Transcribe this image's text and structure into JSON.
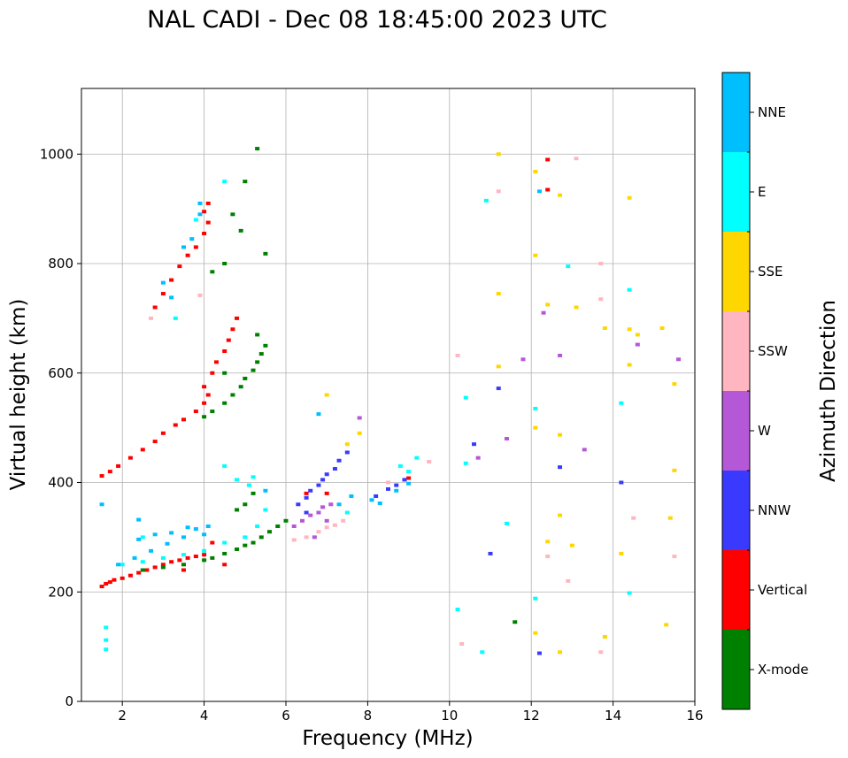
{
  "chart_data": {
    "type": "scatter",
    "title": "NAL CADI - Dec 08 18:45:00 2023 UTC",
    "xlabel": "Frequency (MHz)",
    "ylabel": "Virtual height (km)",
    "xlim": [
      1,
      16
    ],
    "ylim": [
      0,
      1120
    ],
    "xticks": [
      2,
      4,
      6,
      8,
      10,
      12,
      14,
      16
    ],
    "yticks": [
      0,
      200,
      400,
      600,
      800,
      1000
    ],
    "grid": true,
    "colorbar": {
      "label": "Azimuth Direction",
      "categories": [
        {
          "name": "X-mode",
          "color": "#008000"
        },
        {
          "name": "Vertical",
          "color": "#ff0000"
        },
        {
          "name": "NNW",
          "color": "#3a3aff"
        },
        {
          "name": "W",
          "color": "#b558d8"
        },
        {
          "name": "SSW",
          "color": "#ffb6c1"
        },
        {
          "name": "SSE",
          "color": "#ffd700"
        },
        {
          "name": "E",
          "color": "#00ffff"
        },
        {
          "name": "NNE",
          "color": "#00bfff"
        }
      ]
    },
    "series": [
      {
        "name": "Vertical",
        "points": [
          [
            1.5,
            210
          ],
          [
            1.6,
            215
          ],
          [
            1.7,
            218
          ],
          [
            1.8,
            222
          ],
          [
            2.0,
            225
          ],
          [
            2.2,
            230
          ],
          [
            2.4,
            235
          ],
          [
            2.6,
            240
          ],
          [
            2.8,
            245
          ],
          [
            3.0,
            250
          ],
          [
            3.2,
            255
          ],
          [
            3.4,
            258
          ],
          [
            3.6,
            262
          ],
          [
            3.8,
            265
          ],
          [
            4.0,
            268
          ],
          [
            1.5,
            412
          ],
          [
            1.7,
            420
          ],
          [
            1.9,
            430
          ],
          [
            2.2,
            445
          ],
          [
            2.5,
            460
          ],
          [
            2.8,
            475
          ],
          [
            3.0,
            490
          ],
          [
            3.3,
            505
          ],
          [
            3.5,
            515
          ],
          [
            3.8,
            530
          ],
          [
            4.0,
            545
          ],
          [
            4.1,
            560
          ],
          [
            4.0,
            575
          ],
          [
            4.2,
            600
          ],
          [
            4.3,
            620
          ],
          [
            4.5,
            640
          ],
          [
            4.6,
            660
          ],
          [
            4.7,
            680
          ],
          [
            4.8,
            700
          ],
          [
            2.8,
            720
          ],
          [
            3.0,
            745
          ],
          [
            3.2,
            770
          ],
          [
            3.4,
            795
          ],
          [
            3.6,
            815
          ],
          [
            3.8,
            830
          ],
          [
            4.0,
            855
          ],
          [
            4.1,
            875
          ],
          [
            4.0,
            895
          ],
          [
            4.1,
            910
          ],
          [
            6.5,
            380
          ],
          [
            7.0,
            380
          ],
          [
            9.0,
            408
          ],
          [
            12.4,
            990
          ],
          [
            12.4,
            935
          ],
          [
            4.5,
            250
          ],
          [
            4.2,
            290
          ],
          [
            3.5,
            240
          ]
        ]
      },
      {
        "name": "X-mode",
        "points": [
          [
            2.5,
            240
          ],
          [
            3.0,
            245
          ],
          [
            3.5,
            250
          ],
          [
            4.0,
            258
          ],
          [
            4.2,
            262
          ],
          [
            4.5,
            270
          ],
          [
            4.8,
            278
          ],
          [
            5.0,
            285
          ],
          [
            5.2,
            290
          ],
          [
            5.4,
            300
          ],
          [
            5.6,
            310
          ],
          [
            5.8,
            320
          ],
          [
            6.0,
            330
          ],
          [
            4.0,
            520
          ],
          [
            4.2,
            530
          ],
          [
            4.5,
            545
          ],
          [
            4.7,
            560
          ],
          [
            4.9,
            575
          ],
          [
            5.0,
            590
          ],
          [
            5.2,
            605
          ],
          [
            5.3,
            620
          ],
          [
            5.4,
            635
          ],
          [
            5.5,
            650
          ],
          [
            5.3,
            670
          ],
          [
            4.5,
            600
          ],
          [
            4.2,
            785
          ],
          [
            4.5,
            800
          ],
          [
            5.5,
            818
          ],
          [
            5.3,
            1010
          ],
          [
            5.0,
            950
          ],
          [
            4.7,
            890
          ],
          [
            4.9,
            860
          ],
          [
            5.2,
            380
          ],
          [
            5.0,
            360
          ],
          [
            4.8,
            350
          ],
          [
            11.6,
            145
          ]
        ]
      },
      {
        "name": "NNW",
        "points": [
          [
            6.3,
            360
          ],
          [
            6.5,
            345
          ],
          [
            6.5,
            372
          ],
          [
            6.6,
            385
          ],
          [
            6.8,
            395
          ],
          [
            6.9,
            405
          ],
          [
            7.0,
            415
          ],
          [
            7.2,
            425
          ],
          [
            7.3,
            440
          ],
          [
            7.5,
            455
          ],
          [
            8.2,
            375
          ],
          [
            8.5,
            388
          ],
          [
            8.7,
            395
          ],
          [
            8.9,
            405
          ],
          [
            11.2,
            572
          ],
          [
            12.7,
            428
          ],
          [
            10.6,
            470
          ],
          [
            11.0,
            270
          ],
          [
            12.2,
            88
          ],
          [
            14.2,
            400
          ]
        ]
      },
      {
        "name": "W",
        "points": [
          [
            6.2,
            320
          ],
          [
            6.4,
            330
          ],
          [
            6.6,
            340
          ],
          [
            6.8,
            345
          ],
          [
            7.0,
            330
          ],
          [
            6.9,
            355
          ],
          [
            7.1,
            360
          ],
          [
            6.7,
            300
          ],
          [
            7.8,
            518
          ],
          [
            12.3,
            710
          ],
          [
            12.7,
            632
          ],
          [
            14.6,
            652
          ],
          [
            15.6,
            625
          ],
          [
            11.8,
            625
          ],
          [
            13.3,
            460
          ],
          [
            10.7,
            445
          ],
          [
            11.4,
            480
          ]
        ]
      },
      {
        "name": "SSW",
        "points": [
          [
            6.2,
            295
          ],
          [
            6.5,
            300
          ],
          [
            6.8,
            310
          ],
          [
            7.0,
            318
          ],
          [
            7.2,
            322
          ],
          [
            7.4,
            330
          ],
          [
            3.9,
            742
          ],
          [
            2.7,
            700
          ],
          [
            10.2,
            632
          ],
          [
            11.2,
            932
          ],
          [
            13.1,
            992
          ],
          [
            13.7,
            800
          ],
          [
            13.7,
            735
          ],
          [
            14.5,
            335
          ],
          [
            15.5,
            265
          ],
          [
            12.4,
            265
          ],
          [
            12.9,
            220
          ],
          [
            13.7,
            90
          ],
          [
            10.3,
            105
          ],
          [
            8.5,
            400
          ],
          [
            9.5,
            438
          ]
        ]
      },
      {
        "name": "SSE",
        "points": [
          [
            7.0,
            560
          ],
          [
            7.5,
            470
          ],
          [
            7.8,
            490
          ],
          [
            11.2,
            1000
          ],
          [
            12.1,
            968
          ],
          [
            12.7,
            925
          ],
          [
            12.1,
            815
          ],
          [
            12.4,
            725
          ],
          [
            13.1,
            720
          ],
          [
            13.8,
            682
          ],
          [
            14.4,
            680
          ],
          [
            14.6,
            670
          ],
          [
            15.2,
            682
          ],
          [
            14.4,
            615
          ],
          [
            15.5,
            580
          ],
          [
            12.1,
            500
          ],
          [
            12.7,
            487
          ],
          [
            15.5,
            422
          ],
          [
            12.7,
            340
          ],
          [
            12.4,
            292
          ],
          [
            13.0,
            285
          ],
          [
            15.4,
            335
          ],
          [
            14.2,
            270
          ],
          [
            13.8,
            118
          ],
          [
            12.1,
            125
          ],
          [
            12.7,
            90
          ],
          [
            15.3,
            140
          ],
          [
            11.2,
            612
          ],
          [
            11.2,
            745
          ],
          [
            14.4,
            920
          ]
        ]
      },
      {
        "name": "E",
        "points": [
          [
            1.6,
            95
          ],
          [
            1.6,
            112
          ],
          [
            1.6,
            135
          ],
          [
            2.0,
            250
          ],
          [
            2.5,
            255
          ],
          [
            3.0,
            262
          ],
          [
            3.5,
            268
          ],
          [
            4.0,
            275
          ],
          [
            4.5,
            290
          ],
          [
            5.0,
            300
          ],
          [
            5.3,
            320
          ],
          [
            5.5,
            350
          ],
          [
            5.2,
            410
          ],
          [
            5.1,
            395
          ],
          [
            4.8,
            405
          ],
          [
            4.5,
            430
          ],
          [
            2.5,
            300
          ],
          [
            3.3,
            700
          ],
          [
            4.5,
            950
          ],
          [
            3.8,
            880
          ],
          [
            10.4,
            435
          ],
          [
            10.4,
            555
          ],
          [
            10.9,
            915
          ],
          [
            12.9,
            795
          ],
          [
            14.4,
            752
          ],
          [
            14.2,
            545
          ],
          [
            14.4,
            198
          ],
          [
            10.2,
            168
          ],
          [
            10.8,
            90
          ],
          [
            12.1,
            188
          ],
          [
            11.4,
            325
          ],
          [
            9.0,
            420
          ],
          [
            8.8,
            430
          ],
          [
            9.2,
            445
          ],
          [
            7.5,
            345
          ],
          [
            12.1,
            535
          ]
        ]
      },
      {
        "name": "NNE",
        "points": [
          [
            1.5,
            360
          ],
          [
            1.9,
            250
          ],
          [
            2.3,
            262
          ],
          [
            2.7,
            275
          ],
          [
            3.1,
            288
          ],
          [
            3.5,
            300
          ],
          [
            3.8,
            315
          ],
          [
            4.1,
            320
          ],
          [
            2.4,
            296
          ],
          [
            2.8,
            305
          ],
          [
            3.2,
            308
          ],
          [
            3.6,
            318
          ],
          [
            2.4,
            332
          ],
          [
            4.0,
            305
          ],
          [
            3.2,
            738
          ],
          [
            3.0,
            765
          ],
          [
            3.5,
            830
          ],
          [
            3.7,
            845
          ],
          [
            3.9,
            890
          ],
          [
            3.9,
            910
          ],
          [
            5.5,
            385
          ],
          [
            7.3,
            360
          ],
          [
            7.6,
            375
          ],
          [
            8.1,
            368
          ],
          [
            8.3,
            362
          ],
          [
            8.7,
            385
          ],
          [
            9.0,
            398
          ],
          [
            6.8,
            525
          ],
          [
            12.2,
            932
          ]
        ]
      }
    ]
  }
}
